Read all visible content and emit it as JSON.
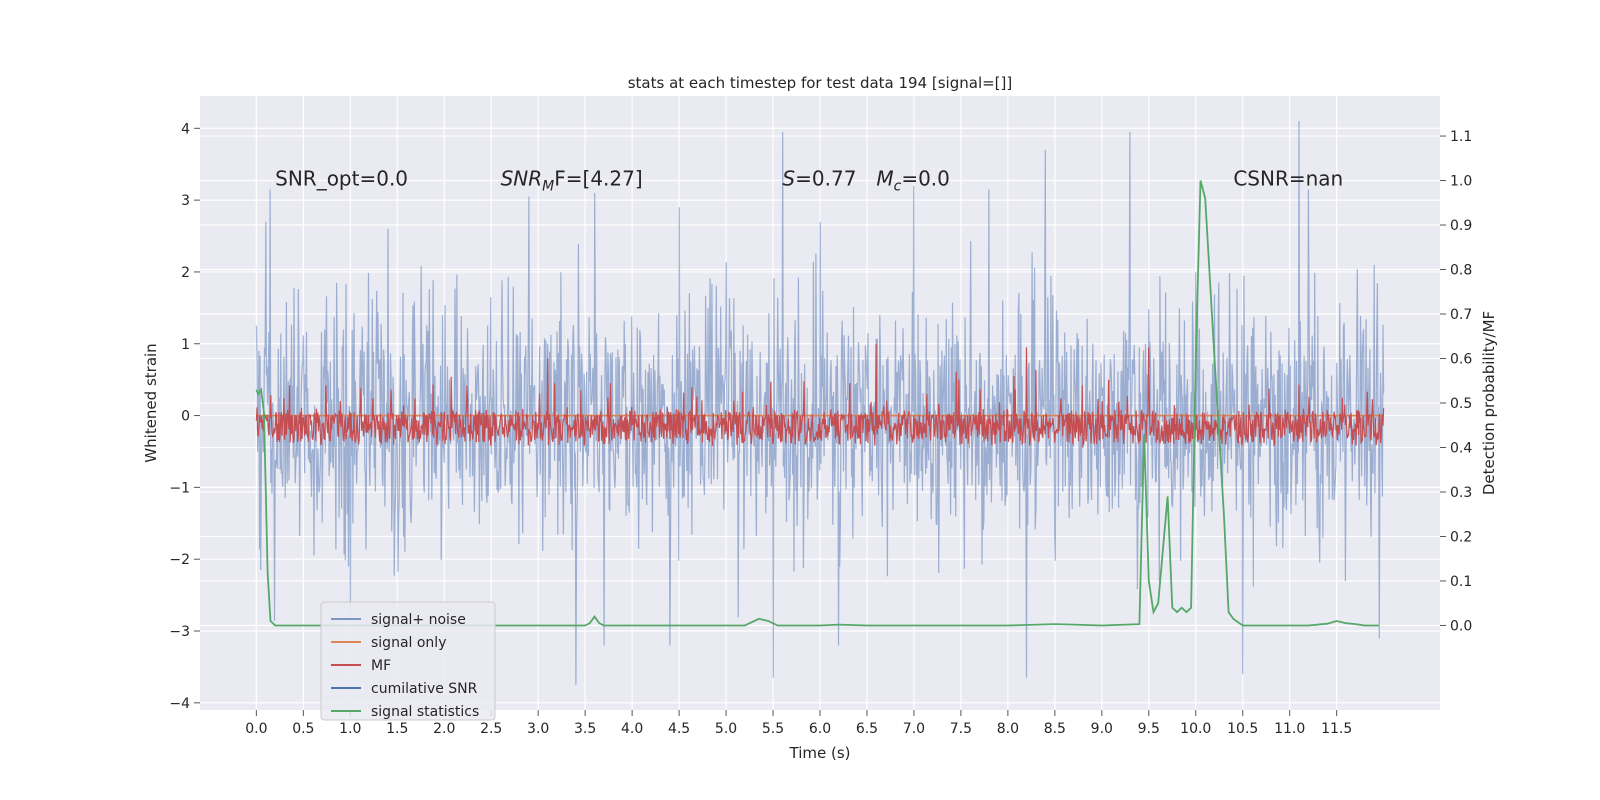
{
  "chart_data": {
    "type": "line",
    "title": "stats at each timestep for test data 194 [signal=[]]",
    "xlabel": "Time (s)",
    "ylabel": "Whitened strain",
    "ylabel_right": "Detection probability/MF",
    "xlim": [
      -0.6,
      12.6
    ],
    "ylim": [
      -4.1,
      4.45
    ],
    "ylim_right": [
      -0.19,
      1.19
    ],
    "x_ticks": [
      "0.0",
      "0.5",
      "1.0",
      "1.5",
      "2.0",
      "2.5",
      "3.0",
      "3.5",
      "4.0",
      "4.5",
      "5.0",
      "5.5",
      "6.0",
      "6.5",
      "7.0",
      "7.5",
      "8.0",
      "8.5",
      "9.0",
      "9.5",
      "10.0",
      "10.5",
      "11.0",
      "11.5"
    ],
    "y_ticks": [
      "4",
      "3",
      "2",
      "1",
      "0",
      "−1",
      "−2",
      "−3",
      "−4"
    ],
    "y_right_ticks": [
      "1.1",
      "1.0",
      "0.9",
      "0.8",
      "0.7",
      "0.6",
      "0.5",
      "0.4",
      "0.3",
      "0.2",
      "0.1",
      "0.0"
    ],
    "grid": true,
    "annotations": [
      {
        "label": "SNR_opt=0.0",
        "x": 0.2,
        "y": 3.3
      },
      {
        "label_main": "SNR",
        "label_sub": "M",
        "label_rest": "F=[4.27]",
        "x": 2.6,
        "y": 3.3
      },
      {
        "label_main": "S",
        "label_sub": "",
        "label_rest": "=0.77",
        "x": 5.6,
        "y": 3.3
      },
      {
        "label_main": "M",
        "label_sub": "c",
        "label_rest": "=0.0",
        "x": 6.6,
        "y": 3.3
      },
      {
        "label": "CSNR=nan",
        "x": 10.4,
        "y": 3.3
      }
    ],
    "legend": {
      "position": "lower-left",
      "entries": [
        "signal+ noise",
        "signal only",
        "MF",
        "cumilative SNR",
        "signal statistics"
      ]
    },
    "series": [
      {
        "name": "signal+ noise",
        "axis": "left",
        "color": "#4c72b0",
        "alpha": 0.5,
        "x_range": [
          0.0,
          12.0
        ],
        "samples": 1800,
        "std": 0.85,
        "peaks": [
          [
            0.03,
            0.9
          ],
          [
            0.1,
            2.7
          ],
          [
            0.15,
            3.15
          ],
          [
            1.4,
            2.6
          ],
          [
            2.9,
            3.05
          ],
          [
            3.6,
            3.1
          ],
          [
            4.5,
            2.9
          ],
          [
            5.6,
            3.95
          ],
          [
            6.0,
            2.7
          ],
          [
            7.0,
            3.2
          ],
          [
            7.8,
            3.15
          ],
          [
            8.4,
            3.7
          ],
          [
            9.3,
            3.95
          ],
          [
            10.0,
            2.0
          ],
          [
            11.1,
            4.1
          ],
          [
            11.2,
            3.15
          ],
          [
            11.9,
            2.1
          ]
        ],
        "troughs": [
          [
            0.05,
            -2.15
          ],
          [
            1.0,
            -2.8
          ],
          [
            3.4,
            -3.75
          ],
          [
            3.7,
            -3.2
          ],
          [
            4.4,
            -3.2
          ],
          [
            5.5,
            -3.65
          ],
          [
            6.2,
            -3.2
          ],
          [
            8.2,
            -3.65
          ],
          [
            10.5,
            -3.6
          ],
          [
            11.95,
            -3.1
          ]
        ]
      },
      {
        "name": "signal only",
        "axis": "left",
        "color": "#dd8452",
        "x": [
          0.0,
          12.0
        ],
        "y": [
          0.0,
          0.0
        ]
      },
      {
        "name": "MF",
        "axis": "left",
        "color": "#c44e52",
        "x_range": [
          0.0,
          12.0
        ],
        "samples": 1800,
        "baseline_min": -0.42,
        "baseline_max": 0.5,
        "peaks": [
          [
            3.1,
            0.8
          ],
          [
            6.6,
            1.0
          ],
          [
            8.2,
            0.95
          ],
          [
            9.5,
            0.95
          ]
        ]
      },
      {
        "name": "cumilative SNR",
        "axis": "left",
        "color": "#4c72b0",
        "x": [],
        "y": []
      },
      {
        "name": "signal statistics",
        "axis": "right",
        "color": "#55a868",
        "x": [
          0.0,
          0.02,
          0.05,
          0.08,
          0.1,
          0.12,
          0.15,
          0.2,
          0.5,
          1.0,
          2.0,
          3.0,
          3.5,
          3.55,
          3.6,
          3.65,
          3.7,
          4.0,
          5.0,
          5.2,
          5.35,
          5.45,
          5.55,
          6.0,
          6.2,
          6.5,
          7.0,
          8.0,
          8.5,
          8.7,
          9.0,
          9.4,
          9.45,
          9.5,
          9.55,
          9.6,
          9.7,
          9.75,
          9.8,
          9.85,
          9.9,
          9.95,
          10.0,
          10.05,
          10.1,
          10.2,
          10.3,
          10.35,
          10.4,
          10.5,
          11.0,
          11.2,
          11.4,
          11.5,
          11.6,
          11.7,
          11.8,
          11.95
        ],
        "y": [
          0.53,
          0.52,
          0.53,
          0.48,
          0.3,
          0.12,
          0.01,
          0.0,
          0.0,
          0.0,
          0.0,
          0.0,
          0.0,
          0.005,
          0.02,
          0.005,
          0.0,
          0.0,
          0.0,
          0.0,
          0.015,
          0.01,
          0.0,
          0.0,
          0.002,
          0.0,
          0.0,
          0.0,
          0.003,
          0.002,
          0.0,
          0.003,
          0.43,
          0.1,
          0.03,
          0.05,
          0.29,
          0.04,
          0.03,
          0.04,
          0.03,
          0.04,
          0.6,
          1.0,
          0.96,
          0.6,
          0.25,
          0.03,
          0.015,
          0.0,
          0.0,
          0.0,
          0.004,
          0.01,
          0.005,
          0.003,
          0.0,
          0.0
        ]
      }
    ]
  }
}
